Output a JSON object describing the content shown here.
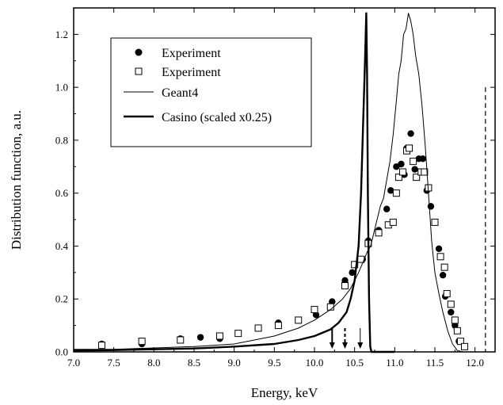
{
  "chart_data": {
    "type": "scatter",
    "title": "",
    "xlabel": "Energy, keV",
    "ylabel": "Distribution function, a.u.",
    "xlim": [
      7.0,
      12.25
    ],
    "ylim": [
      0.0,
      1.3
    ],
    "x_ticks": [
      "7.0",
      "7.5",
      "8.0",
      "8.5",
      "9.0",
      "9.5",
      "10.0",
      "10.5",
      "11.0",
      "11.5",
      "12.0"
    ],
    "y_ticks": [
      "0.0",
      "0.2",
      "0.4",
      "0.6",
      "0.8",
      "1.0",
      "1.2"
    ],
    "grid": false,
    "legend_position": "top-left",
    "series": [
      {
        "name": "Experiment",
        "kind": "scatter",
        "marker": "filled-circle",
        "color": "#000000",
        "points": [
          [
            7.35,
            0.03
          ],
          [
            7.85,
            0.03
          ],
          [
            8.33,
            0.05
          ],
          [
            8.58,
            0.055
          ],
          [
            8.82,
            0.05
          ],
          [
            9.55,
            0.11
          ],
          [
            9.8,
            0.12
          ],
          [
            10.02,
            0.14
          ],
          [
            10.22,
            0.19
          ],
          [
            10.38,
            0.27
          ],
          [
            10.47,
            0.3
          ],
          [
            10.6,
            0.35
          ],
          [
            10.67,
            0.42
          ],
          [
            10.8,
            0.46
          ],
          [
            10.9,
            0.54
          ],
          [
            10.95,
            0.61
          ],
          [
            11.02,
            0.7
          ],
          [
            11.08,
            0.71
          ],
          [
            11.12,
            0.67
          ],
          [
            11.15,
            0.77
          ],
          [
            11.2,
            0.825
          ],
          [
            11.25,
            0.69
          ],
          [
            11.3,
            0.73
          ],
          [
            11.35,
            0.73
          ],
          [
            11.4,
            0.61
          ],
          [
            11.45,
            0.55
          ],
          [
            11.55,
            0.39
          ],
          [
            11.6,
            0.29
          ],
          [
            11.63,
            0.21
          ],
          [
            11.7,
            0.15
          ],
          [
            11.75,
            0.1
          ],
          [
            11.8,
            0.04
          ]
        ]
      },
      {
        "name": "Experiment",
        "kind": "scatter",
        "marker": "open-square",
        "color": "#000000",
        "points": [
          [
            7.35,
            0.025
          ],
          [
            7.85,
            0.04
          ],
          [
            8.33,
            0.045
          ],
          [
            8.82,
            0.06
          ],
          [
            9.05,
            0.07
          ],
          [
            9.3,
            0.09
          ],
          [
            9.55,
            0.1
          ],
          [
            9.8,
            0.12
          ],
          [
            10.0,
            0.16
          ],
          [
            10.2,
            0.17
          ],
          [
            10.38,
            0.25
          ],
          [
            10.5,
            0.33
          ],
          [
            10.58,
            0.35
          ],
          [
            10.67,
            0.41
          ],
          [
            10.8,
            0.45
          ],
          [
            10.92,
            0.48
          ],
          [
            10.98,
            0.49
          ],
          [
            11.02,
            0.6
          ],
          [
            11.05,
            0.66
          ],
          [
            11.1,
            0.68
          ],
          [
            11.15,
            0.76
          ],
          [
            11.18,
            0.77
          ],
          [
            11.23,
            0.72
          ],
          [
            11.27,
            0.66
          ],
          [
            11.33,
            0.68
          ],
          [
            11.37,
            0.68
          ],
          [
            11.42,
            0.62
          ],
          [
            11.5,
            0.49
          ],
          [
            11.57,
            0.36
          ],
          [
            11.62,
            0.32
          ],
          [
            11.65,
            0.22
          ],
          [
            11.7,
            0.18
          ],
          [
            11.75,
            0.12
          ],
          [
            11.78,
            0.08
          ],
          [
            11.82,
            0.04
          ],
          [
            11.87,
            0.02
          ]
        ]
      },
      {
        "name": "Geant4",
        "kind": "line",
        "stroke": "thin",
        "color": "#000000",
        "points": [
          [
            7.0,
            0.01
          ],
          [
            7.5,
            0.01
          ],
          [
            8.0,
            0.015
          ],
          [
            8.5,
            0.02
          ],
          [
            9.0,
            0.03
          ],
          [
            9.5,
            0.06
          ],
          [
            9.8,
            0.09
          ],
          [
            10.0,
            0.12
          ],
          [
            10.2,
            0.16
          ],
          [
            10.35,
            0.2
          ],
          [
            10.45,
            0.24
          ],
          [
            10.55,
            0.3
          ],
          [
            10.62,
            0.35
          ],
          [
            10.66,
            0.38
          ],
          [
            10.7,
            0.4
          ],
          [
            10.74,
            0.45
          ],
          [
            10.78,
            0.5
          ],
          [
            10.82,
            0.55
          ],
          [
            10.86,
            0.58
          ],
          [
            10.9,
            0.65
          ],
          [
            10.94,
            0.72
          ],
          [
            10.98,
            0.82
          ],
          [
            11.02,
            0.95
          ],
          [
            11.05,
            1.05
          ],
          [
            11.08,
            1.1
          ],
          [
            11.11,
            1.2
          ],
          [
            11.14,
            1.22
          ],
          [
            11.17,
            1.28
          ],
          [
            11.2,
            1.25
          ],
          [
            11.23,
            1.2
          ],
          [
            11.26,
            1.12
          ],
          [
            11.3,
            1.05
          ],
          [
            11.34,
            0.93
          ],
          [
            11.38,
            0.78
          ],
          [
            11.42,
            0.6
          ],
          [
            11.46,
            0.42
          ],
          [
            11.5,
            0.3
          ],
          [
            11.55,
            0.22
          ],
          [
            11.6,
            0.15
          ],
          [
            11.66,
            0.08
          ],
          [
            11.72,
            0.03
          ],
          [
            11.78,
            0.005
          ],
          [
            11.85,
            0.0
          ],
          [
            12.0,
            0.0
          ]
        ]
      },
      {
        "name": "Casino (scaled x0.25)",
        "kind": "line",
        "stroke": "thick",
        "color": "#000000",
        "points": [
          [
            7.0,
            0.005
          ],
          [
            7.5,
            0.007
          ],
          [
            8.0,
            0.01
          ],
          [
            8.5,
            0.013
          ],
          [
            9.0,
            0.02
          ],
          [
            9.5,
            0.03
          ],
          [
            9.8,
            0.045
          ],
          [
            10.0,
            0.06
          ],
          [
            10.2,
            0.085
          ],
          [
            10.3,
            0.11
          ],
          [
            10.4,
            0.15
          ],
          [
            10.45,
            0.2
          ],
          [
            10.5,
            0.27
          ],
          [
            10.55,
            0.4
          ],
          [
            10.58,
            0.6
          ],
          [
            10.61,
            0.9
          ],
          [
            10.63,
            1.1
          ],
          [
            10.645,
            1.28
          ],
          [
            10.655,
            1.05
          ],
          [
            10.665,
            0.6
          ],
          [
            10.68,
            0.2
          ],
          [
            10.695,
            0.02
          ],
          [
            10.71,
            0.0
          ],
          [
            11.0,
            0.0
          ]
        ]
      }
    ],
    "markers": [
      {
        "type": "arrow-solid",
        "x": 10.22
      },
      {
        "type": "arrow-dashed",
        "x": 10.38
      },
      {
        "type": "arrow-thin",
        "x": 10.57
      },
      {
        "type": "vertical-dashed-line",
        "x": 12.13,
        "y_top": 1.0
      }
    ]
  }
}
